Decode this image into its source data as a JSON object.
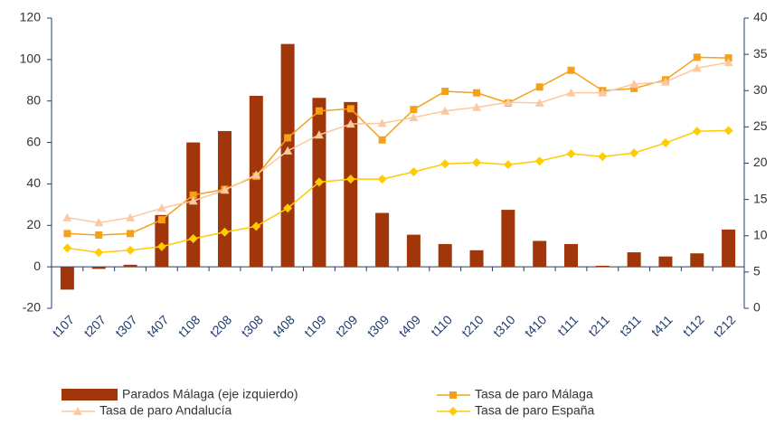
{
  "chart_data": {
    "type": "bar_line",
    "categories": [
      "t107",
      "t207",
      "t307",
      "t407",
      "t108",
      "t208",
      "t308",
      "t408",
      "t109",
      "t209",
      "t309",
      "t409",
      "t110",
      "t210",
      "t310",
      "t410",
      "t111",
      "t211",
      "t311",
      "t411",
      "t112",
      "t212"
    ],
    "ylim": [
      -20,
      120
    ],
    "yticks": [
      -20,
      0,
      20,
      40,
      60,
      80,
      100,
      120
    ],
    "y2lim": [
      0,
      40
    ],
    "y2ticks": [
      0,
      5,
      10,
      15,
      20,
      25,
      30,
      35,
      40
    ],
    "series": [
      {
        "name": "Parados Málaga (eje izquierdo)",
        "type": "bar",
        "color": "#a0360a",
        "values": [
          -11,
          -1,
          1,
          25,
          60,
          65.5,
          82.5,
          107.5,
          81.5,
          79.5,
          26,
          15.5,
          11,
          8,
          27.5,
          12.5,
          11,
          0.5,
          7,
          5,
          6.5,
          18
        ]
      },
      {
        "name": "Tasa de paro Málaga",
        "type": "line",
        "axis": "y2",
        "marker": "square",
        "color": "#f5a01a",
        "values": [
          10.3,
          10.1,
          10.3,
          12.2,
          15.6,
          16.4,
          18.2,
          23.5,
          27.2,
          27.5,
          23.2,
          27.4,
          29.9,
          29.7,
          28.3,
          30.5,
          32.8,
          30,
          30.3,
          31.5,
          34.6,
          34.5
        ]
      },
      {
        "name": "Tasa de paro Andalucía",
        "type": "line",
        "axis": "y2",
        "marker": "triangle",
        "color": "#fbc8a0",
        "values": [
          12.5,
          11.8,
          12.5,
          13.8,
          14.8,
          16.3,
          18.4,
          21.7,
          23.9,
          25.4,
          25.5,
          26.3,
          27.2,
          27.7,
          28.4,
          28.3,
          29.7,
          29.7,
          30.9,
          31.2,
          33.1,
          33.9
        ]
      },
      {
        "name": "Tasa de paro España",
        "type": "line",
        "axis": "y2",
        "marker": "diamond",
        "color": "#ffcc00",
        "values": [
          8.3,
          7.7,
          8,
          8.5,
          9.6,
          10.5,
          11.3,
          13.8,
          17.4,
          17.8,
          17.8,
          18.8,
          19.9,
          20.1,
          19.8,
          20.3,
          21.3,
          20.9,
          21.4,
          22.8,
          24.4,
          24.5
        ]
      }
    ]
  }
}
